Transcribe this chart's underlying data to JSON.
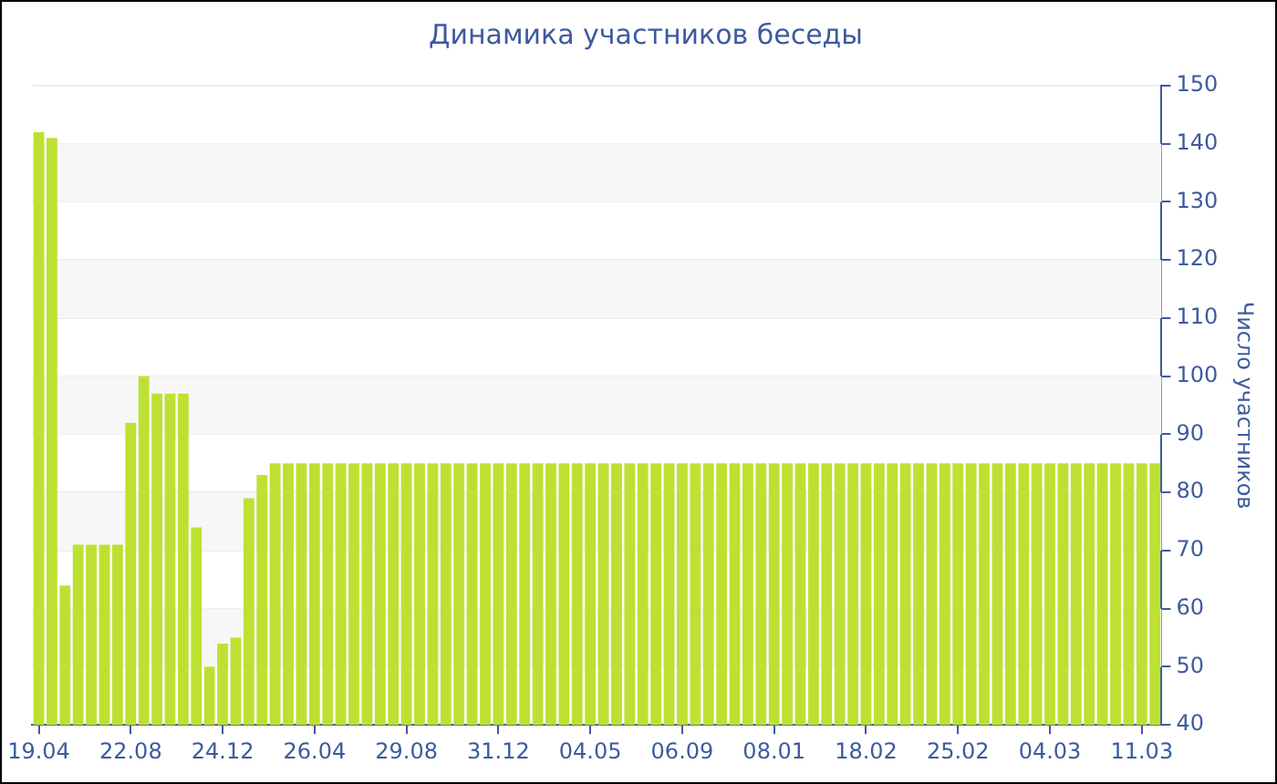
{
  "chart_data": {
    "type": "bar",
    "title": "Динамика участников беседы",
    "ylabel": "Число участников",
    "categories": [
      "19.04",
      null,
      null,
      null,
      null,
      null,
      null,
      "22.08",
      null,
      null,
      null,
      null,
      null,
      null,
      "24.12",
      null,
      null,
      null,
      null,
      null,
      null,
      "26.04",
      null,
      null,
      null,
      null,
      null,
      null,
      "29.08",
      null,
      null,
      null,
      null,
      null,
      null,
      "31.12",
      null,
      null,
      null,
      null,
      null,
      null,
      "04.05",
      null,
      null,
      null,
      null,
      null,
      null,
      "06.09",
      null,
      null,
      null,
      null,
      null,
      null,
      "08.01",
      null,
      null,
      null,
      null,
      null,
      null,
      "18.02",
      null,
      null,
      null,
      null,
      null,
      null,
      "25.02",
      null,
      null,
      null,
      null,
      null,
      null,
      "04.03",
      null,
      null,
      null,
      null,
      null,
      null,
      "11.03",
      null
    ],
    "values": [
      142,
      141,
      64,
      71,
      71,
      71,
      71,
      92,
      100,
      97,
      97,
      97,
      74,
      50,
      54,
      55,
      79,
      83,
      85,
      85,
      85,
      85,
      85,
      85,
      85,
      85,
      85,
      85,
      85,
      85,
      85,
      85,
      85,
      85,
      85,
      85,
      85,
      85,
      85,
      85,
      85,
      85,
      85,
      85,
      85,
      85,
      85,
      85,
      85,
      85,
      85,
      85,
      85,
      85,
      85,
      85,
      85,
      85,
      85,
      85,
      85,
      85,
      85,
      85,
      85,
      85,
      85,
      85,
      85,
      85,
      85,
      85,
      85,
      85,
      85,
      85,
      85,
      85,
      85,
      85,
      85,
      85,
      85,
      85,
      85,
      85
    ],
    "color": "#bde132",
    "ylim": [
      40,
      150
    ],
    "yticks": [
      40,
      50,
      60,
      70,
      80,
      90,
      100,
      110,
      120,
      130,
      140,
      150
    ],
    "grid": true,
    "legend": false
  }
}
